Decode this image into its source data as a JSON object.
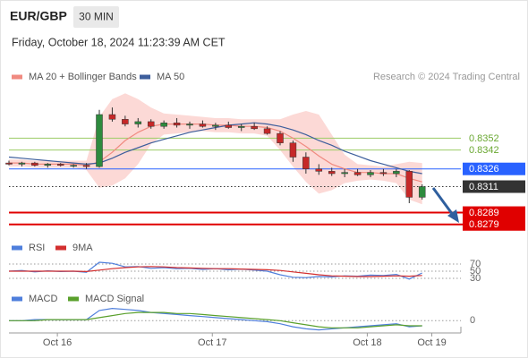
{
  "header": {
    "symbol": "EUR/GBP",
    "timeframe": "30 MIN",
    "timestamp": "Friday, October 18, 2024 11:23:39 AM CET",
    "source": "Research © 2024 Trading Central"
  },
  "chart_data": [
    {
      "type": "candlestick",
      "x": [
        0,
        4,
        8,
        12,
        16,
        20,
        24,
        28,
        32,
        36,
        40,
        44,
        48,
        52,
        56,
        60,
        64,
        68,
        72,
        76,
        80,
        84,
        88,
        92,
        96,
        100,
        104,
        108,
        112,
        116,
        120,
        124,
        128
      ],
      "xlim": [
        0,
        140
      ],
      "ylim": [
        0.8272,
        0.8397
      ],
      "candles": {
        "up_color": "#2e8b3e",
        "down_color": "#c62828",
        "wick_color": "#333333",
        "open": [
          0.8331,
          0.833,
          0.8331,
          0.8329,
          0.833,
          0.8329,
          0.8329,
          0.8328,
          0.8372,
          0.8368,
          0.8364,
          0.8366,
          0.8362,
          0.8365,
          0.8363,
          0.8364,
          0.8362,
          0.8363,
          0.8361,
          0.8362,
          0.836,
          0.8356,
          0.8348,
          0.8336,
          0.8326,
          0.8324,
          0.8322,
          0.8323,
          0.8321,
          0.8323,
          0.8322,
          0.8324,
          0.8302
        ],
        "high": [
          0.8333,
          0.8332,
          0.8332,
          0.8331,
          0.8331,
          0.833,
          0.8331,
          0.8376,
          0.8378,
          0.8371,
          0.8369,
          0.8368,
          0.8367,
          0.8369,
          0.8366,
          0.8367,
          0.8365,
          0.8366,
          0.8364,
          0.8365,
          0.8362,
          0.8358,
          0.835,
          0.834,
          0.833,
          0.8327,
          0.8326,
          0.8326,
          0.8325,
          0.8326,
          0.8326,
          0.8325,
          0.8313
        ],
        "low": [
          0.8329,
          0.8328,
          0.8328,
          0.8327,
          0.8328,
          0.8327,
          0.8326,
          0.8327,
          0.8366,
          0.8362,
          0.8361,
          0.836,
          0.836,
          0.8361,
          0.836,
          0.8361,
          0.8359,
          0.836,
          0.8358,
          0.8359,
          0.8355,
          0.8346,
          0.8332,
          0.8322,
          0.8321,
          0.832,
          0.8319,
          0.832,
          0.8319,
          0.832,
          0.8319,
          0.8297,
          0.83
        ],
        "close": [
          0.833,
          0.8331,
          0.8329,
          0.833,
          0.8329,
          0.8329,
          0.8328,
          0.8372,
          0.8368,
          0.8364,
          0.8366,
          0.8362,
          0.8365,
          0.8363,
          0.8364,
          0.8362,
          0.8363,
          0.8361,
          0.8362,
          0.836,
          0.8356,
          0.8348,
          0.8336,
          0.8326,
          0.8324,
          0.8322,
          0.8323,
          0.8321,
          0.8323,
          0.8322,
          0.8324,
          0.8302,
          0.8311
        ]
      },
      "series": [
        {
          "name": "MA 20 + Bollinger Bands",
          "color": "#f08a80",
          "band_color": "#fcd9d6",
          "values": [
            0.8331,
            0.8331,
            0.833,
            0.833,
            0.833,
            0.833,
            0.8329,
            0.8332,
            0.834,
            0.835,
            0.8357,
            0.8362,
            0.8364,
            0.8364,
            0.8364,
            0.8364,
            0.8363,
            0.8363,
            0.8362,
            0.8362,
            0.8361,
            0.8358,
            0.8352,
            0.8345,
            0.8337,
            0.833,
            0.8326,
            0.8323,
            0.8323,
            0.8322,
            0.8322,
            0.8318,
            0.8315
          ],
          "upper": [
            0.8334,
            0.8334,
            0.8333,
            0.8333,
            0.8333,
            0.8333,
            0.8333,
            0.837,
            0.8385,
            0.839,
            0.8385,
            0.8378,
            0.8373,
            0.8372,
            0.8371,
            0.837,
            0.8369,
            0.8369,
            0.8368,
            0.8368,
            0.8368,
            0.8368,
            0.8372,
            0.8375,
            0.8372,
            0.8355,
            0.8338,
            0.833,
            0.8329,
            0.8328,
            0.833,
            0.8332,
            0.8331
          ],
          "lower": [
            0.8328,
            0.8328,
            0.8327,
            0.8327,
            0.8327,
            0.8327,
            0.8325,
            0.831,
            0.8312,
            0.8318,
            0.833,
            0.8347,
            0.8355,
            0.8356,
            0.8357,
            0.8358,
            0.8357,
            0.8357,
            0.8356,
            0.8356,
            0.8354,
            0.8342,
            0.8328,
            0.8315,
            0.8305,
            0.8308,
            0.8314,
            0.8316,
            0.8317,
            0.8316,
            0.8314,
            0.83,
            0.8296
          ]
        },
        {
          "name": "MA 50",
          "color": "#3d5e9c",
          "values": [
            0.8336,
            0.8335,
            0.8334,
            0.8333,
            0.8332,
            0.8331,
            0.833,
            0.8331,
            0.8335,
            0.834,
            0.8344,
            0.8348,
            0.8351,
            0.8354,
            0.8357,
            0.8359,
            0.8361,
            0.8363,
            0.8364,
            0.8365,
            0.8364,
            0.8362,
            0.8359,
            0.8355,
            0.835,
            0.8346,
            0.8341,
            0.8337,
            0.8333,
            0.833,
            0.8327,
            0.8324,
            0.8322
          ]
        }
      ],
      "levels": [
        {
          "value": 0.8352,
          "color": "#9ccc65",
          "width": 1,
          "dashed": false,
          "boxed": false
        },
        {
          "value": 0.8342,
          "color": "#9ccc65",
          "width": 1,
          "dashed": false,
          "boxed": false
        },
        {
          "value": 0.8326,
          "color": "#2962ff",
          "width": 1,
          "dashed": false,
          "boxed": true
        },
        {
          "value": 0.8311,
          "color": "#333333",
          "width": 1,
          "dashed": true,
          "boxed": true
        },
        {
          "value": 0.8289,
          "color": "#e00000",
          "width": 2,
          "dashed": false,
          "boxed": true
        },
        {
          "value": 0.8279,
          "color": "#e00000",
          "width": 2,
          "dashed": false,
          "boxed": true
        }
      ]
    },
    {
      "type": "line",
      "x": [
        0,
        4,
        8,
        12,
        16,
        20,
        24,
        28,
        32,
        36,
        40,
        44,
        48,
        52,
        56,
        60,
        64,
        68,
        72,
        76,
        80,
        84,
        88,
        92,
        96,
        100,
        104,
        108,
        112,
        116,
        120,
        124,
        128
      ],
      "xlim": [
        0,
        140
      ],
      "ylim": [
        15,
        85
      ],
      "yticks": [
        70,
        50,
        30
      ],
      "series": [
        {
          "name": "RSI",
          "color": "#4f7fdc",
          "values": [
            50,
            52,
            48,
            51,
            49,
            50,
            47,
            75,
            72,
            62,
            63,
            58,
            60,
            57,
            58,
            55,
            57,
            54,
            56,
            53,
            50,
            40,
            33,
            32,
            35,
            34,
            37,
            36,
            39,
            38,
            41,
            28,
            45
          ]
        },
        {
          "name": "9MA",
          "color": "#d32f2f",
          "values": [
            50,
            50,
            50,
            50,
            50,
            50,
            49,
            53,
            57,
            60,
            62,
            63,
            62,
            60,
            59,
            58,
            57,
            57,
            56,
            55,
            54,
            52,
            48,
            44,
            40,
            37,
            36,
            35,
            35,
            36,
            37,
            36,
            38
          ]
        }
      ]
    },
    {
      "type": "line",
      "x": [
        0,
        4,
        8,
        12,
        16,
        20,
        24,
        28,
        32,
        36,
        40,
        44,
        48,
        52,
        56,
        60,
        64,
        68,
        72,
        76,
        80,
        84,
        88,
        92,
        96,
        100,
        104,
        108,
        112,
        116,
        120,
        124,
        128
      ],
      "xlim": [
        0,
        140
      ],
      "ylim": [
        -0.0012,
        0.0016
      ],
      "yticks": [
        0
      ],
      "xticks": [
        {
          "value": 15,
          "label": "Oct 16"
        },
        {
          "value": 63,
          "label": "Oct 17"
        },
        {
          "value": 111,
          "label": "Oct 18"
        },
        {
          "value": 131,
          "label": "Oct 19"
        }
      ],
      "series": [
        {
          "name": "MACD",
          "color": "#4f7fdc",
          "values": [
            0,
            0,
            0.0001,
            0.0001,
            0.0001,
            0.0001,
            0.0001,
            0.001,
            0.0012,
            0.0011,
            0.001,
            0.0008,
            0.0007,
            0.0006,
            0.0005,
            0.0004,
            0.0003,
            0.0002,
            0.0001,
            0,
            -0.0001,
            -0.0003,
            -0.0006,
            -0.0008,
            -0.0009,
            -0.0008,
            -0.0007,
            -0.0006,
            -0.0005,
            -0.0004,
            -0.0003,
            -0.0006,
            -0.0005
          ]
        },
        {
          "name": "MACD Signal",
          "color": "#5aa02c",
          "values": [
            0,
            0,
            0,
            0.0001,
            0.0001,
            0.0001,
            0.0001,
            0.0003,
            0.0005,
            0.0007,
            0.0008,
            0.0008,
            0.0008,
            0.0007,
            0.0007,
            0.0006,
            0.0005,
            0.0004,
            0.0003,
            0.0002,
            0.0001,
            0,
            -0.0002,
            -0.0004,
            -0.0006,
            -0.0007,
            -0.0007,
            -0.0007,
            -0.0006,
            -0.0005,
            -0.0004,
            -0.0005,
            -0.0005
          ]
        }
      ]
    }
  ]
}
